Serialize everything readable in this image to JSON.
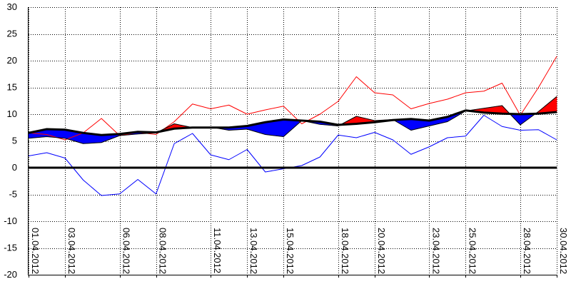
{
  "chart_data": {
    "type": "line",
    "title": "",
    "xlabel": "",
    "ylabel": "",
    "ylim": [
      -20,
      30
    ],
    "yticks": [
      -20,
      -15,
      -10,
      -5,
      0,
      5,
      10,
      15,
      20,
      25,
      30
    ],
    "grid": true,
    "legend": "none",
    "x": [
      "01.04.2012",
      "02.04.2012",
      "03.04.2012",
      "04.04.2012",
      "05.04.2012",
      "06.04.2012",
      "07.04.2012",
      "08.04.2012",
      "09.04.2012",
      "10.04.2012",
      "11.04.2012",
      "12.04.2012",
      "13.04.2012",
      "14.04.2012",
      "15.04.2012",
      "16.04.2012",
      "17.04.2012",
      "18.04.2012",
      "19.04.2012",
      "20.04.2012",
      "21.04.2012",
      "22.04.2012",
      "23.04.2012",
      "24.04.2012",
      "25.04.2012",
      "26.04.2012",
      "27.04.2012",
      "28.04.2012",
      "29.04.2012",
      "30.04.2012"
    ],
    "x_tick_labels": [
      "01.04.2012",
      "03.04.2012",
      "06.04.2012",
      "08.04.2012",
      "11.04.2012",
      "13.04.2012",
      "15.04.2012",
      "18.04.2012",
      "20.04.2012",
      "23.04.2012",
      "25.04.2012",
      "28.04.2012",
      "30.04.2012"
    ],
    "series": [
      {
        "role": "mean_observed",
        "color": "#000000",
        "values": [
          5.5,
          5.8,
          5.5,
          4.5,
          4.7,
          6.0,
          6.3,
          6.5,
          8.2,
          7.5,
          7.6,
          7.0,
          7.2,
          6.2,
          5.8,
          8.8,
          8.1,
          7.8,
          9.6,
          8.8,
          9.0,
          7.0,
          7.8,
          8.6,
          10.6,
          11.1,
          11.6,
          8.0,
          10.5,
          13.3
        ]
      },
      {
        "role": "normal",
        "color": "#000000",
        "values": [
          6.5,
          7.2,
          7.1,
          6.5,
          6.1,
          6.3,
          6.7,
          6.6,
          7.3,
          7.5,
          7.5,
          7.5,
          7.8,
          8.5,
          9.0,
          8.8,
          8.6,
          8.0,
          8.2,
          8.5,
          8.9,
          9.1,
          8.8,
          9.5,
          10.7,
          10.3,
          10.1,
          10.0,
          10.1,
          10.4
        ]
      },
      {
        "role": "max",
        "color": "#ff0000",
        "values": [
          6.5,
          6.2,
          5.2,
          6.5,
          9.2,
          6.0,
          6.6,
          6.2,
          8.6,
          11.9,
          11.0,
          11.7,
          10.0,
          10.8,
          11.5,
          8.2,
          10.0,
          12.4,
          17.0,
          14.0,
          13.6,
          11.0,
          12.0,
          12.8,
          14.0,
          14.3,
          15.8,
          9.8,
          15.0,
          20.8
        ]
      },
      {
        "role": "min",
        "color": "#0000ff",
        "values": [
          2.2,
          2.8,
          1.8,
          -2.3,
          -5.2,
          -4.9,
          -2.2,
          -4.9,
          4.5,
          6.4,
          2.4,
          1.5,
          3.4,
          -0.8,
          -0.2,
          0.4,
          2.0,
          6.1,
          5.6,
          6.6,
          5.2,
          2.5,
          3.9,
          5.6,
          5.9,
          9.8,
          7.7,
          7.0,
          7.1,
          5.2
        ]
      }
    ],
    "fill_above_normal_color": "#ff0000",
    "fill_below_normal_color": "#0000ff",
    "zero_line": true
  }
}
